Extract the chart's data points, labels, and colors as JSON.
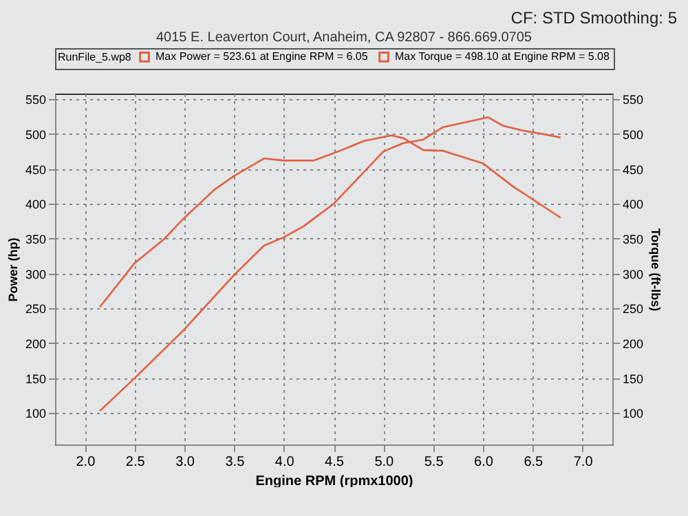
{
  "chart_data": {
    "type": "line",
    "annotations": [
      "4015 E. Leaverton Court, Anaheim, CA 92807 - 866.669.0705",
      "CF: STD Smoothing: 5"
    ],
    "xlabel": "Engine RPM (rpmx1000)",
    "ylabel": "Power (hp)",
    "y2label": "Torque (ft-lbs)",
    "legend_title": "RunFile_5.wp8",
    "xlim": [
      1.7,
      7.3
    ],
    "xticks": [
      {
        "value": 2,
        "label": "2.0"
      },
      2.5,
      {
        "value": 3,
        "label": "3.0"
      },
      3.5,
      {
        "value": 4,
        "label": "4.0"
      },
      4.5,
      {
        "value": 5,
        "label": "5.0"
      },
      5.5,
      {
        "value": 6,
        "label": "6.0"
      },
      6.5,
      {
        "value": 7,
        "label": "7.0"
      }
    ],
    "ylim": [
      55,
      558
    ],
    "yticks": [
      100,
      150,
      200,
      250,
      300,
      350,
      400,
      450,
      500,
      550
    ],
    "y2lim": [
      55,
      558
    ],
    "y2ticks": [
      100,
      150,
      200,
      250,
      300,
      350,
      400,
      450,
      500,
      550
    ],
    "grid": true,
    "legend": "top",
    "series": [
      {
        "name": "Max Power = 523.61 at Engine RPM = 6.05",
        "color": "#e0603f",
        "x": [
          2.15,
          2.5,
          3.0,
          3.5,
          3.8,
          4.0,
          4.2,
          4.5,
          4.8,
          5.0,
          5.2,
          5.4,
          5.6,
          5.8,
          6.05,
          6.2,
          6.4,
          6.6,
          6.78
        ],
        "values": [
          103,
          150,
          220,
          298,
          340,
          352,
          368,
          400,
          445,
          475,
          487,
          492,
          510,
          516,
          524,
          512,
          505,
          500,
          495
        ]
      },
      {
        "name": "Max Torque = 498.10 at Engine RPM = 5.08",
        "color": "#e0603f",
        "axis": "y2",
        "x": [
          2.15,
          2.5,
          2.8,
          3.0,
          3.3,
          3.5,
          3.8,
          4.0,
          4.3,
          4.6,
          4.8,
          5.08,
          5.2,
          5.4,
          5.6,
          6.0,
          6.3,
          6.6,
          6.78
        ],
        "values": [
          252,
          315,
          350,
          380,
          420,
          440,
          465,
          462,
          462,
          478,
          490,
          498,
          494,
          477,
          476,
          458,
          425,
          397,
          380
        ]
      }
    ]
  }
}
